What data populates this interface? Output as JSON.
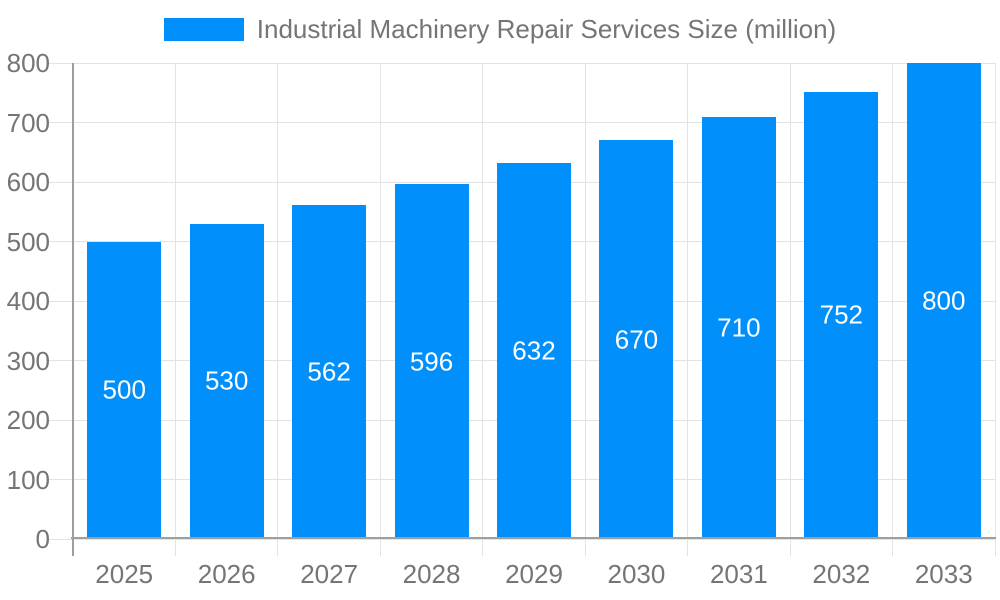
{
  "legend": {
    "series_label": "Industrial Machinery Repair Services Size (million)"
  },
  "chart_data": {
    "type": "bar",
    "title": "Industrial Machinery Repair Services Size (million)",
    "categories": [
      "2025",
      "2026",
      "2027",
      "2028",
      "2029",
      "2030",
      "2031",
      "2032",
      "2033"
    ],
    "values": [
      500,
      530,
      562,
      596,
      632,
      670,
      710,
      752,
      800
    ],
    "series": [
      {
        "name": "Industrial Machinery Repair Services Size (million)",
        "values": [
          500,
          530,
          562,
          596,
          632,
          670,
          710,
          752,
          800
        ]
      }
    ],
    "xlabel": "",
    "ylabel": "",
    "ylim": [
      0,
      800
    ],
    "yticks": [
      0,
      100,
      200,
      300,
      400,
      500,
      600,
      700,
      800
    ],
    "grid": true,
    "legend_position": "top",
    "value_labels_shown": true,
    "colors": {
      "bar": "#008FFB",
      "value_label": "#ffffff",
      "axis_line": "#9e9e9e",
      "gridline": "#e3e3e3",
      "tick_label": "#757575",
      "legend_text": "#757575",
      "background": "#ffffff"
    }
  }
}
